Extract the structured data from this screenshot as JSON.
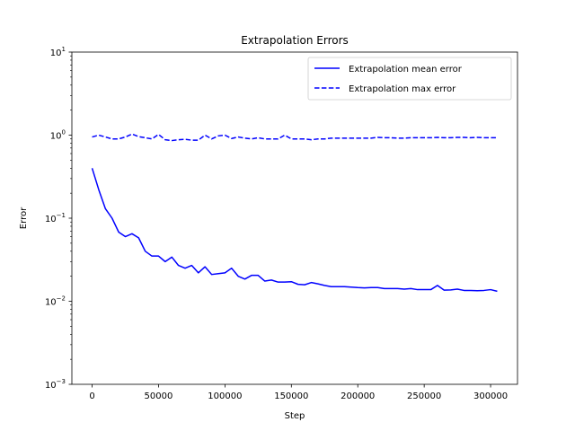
{
  "chart_data": {
    "type": "line",
    "title": "Extrapolation Errors",
    "xlabel": "Step",
    "ylabel": "Error",
    "yscale": "log",
    "xlim": [
      -15250,
      320250
    ],
    "ylim": [
      0.001,
      10
    ],
    "xticks": [
      0,
      50000,
      100000,
      150000,
      200000,
      250000,
      300000
    ],
    "xtick_labels": [
      "0",
      "50000",
      "100000",
      "150000",
      "200000",
      "250000",
      "300000"
    ],
    "yticks": [
      0.001,
      0.01,
      0.1,
      1,
      10
    ],
    "ytick_labels": [
      {
        "base": "10",
        "exp": "−3"
      },
      {
        "base": "10",
        "exp": "−2"
      },
      {
        "base": "10",
        "exp": "−1"
      },
      {
        "base": "10",
        "exp": "0"
      },
      {
        "base": "10",
        "exp": "1"
      }
    ],
    "grid": false,
    "legend_position": "upper right",
    "x": [
      0,
      5000,
      10000,
      15000,
      20000,
      25000,
      30000,
      35000,
      40000,
      45000,
      50000,
      55000,
      60000,
      65000,
      70000,
      75000,
      80000,
      85000,
      90000,
      95000,
      100000,
      105000,
      110000,
      115000,
      120000,
      125000,
      130000,
      135000,
      140000,
      145000,
      150000,
      155000,
      160000,
      165000,
      170000,
      175000,
      180000,
      185000,
      190000,
      195000,
      200000,
      205000,
      210000,
      215000,
      220000,
      225000,
      230000,
      235000,
      240000,
      245000,
      250000,
      255000,
      260000,
      265000,
      270000,
      275000,
      280000,
      285000,
      290000,
      295000,
      300000,
      305000
    ],
    "series": [
      {
        "name": "Extrapolation mean error",
        "color": "#0000ff",
        "style": "solid",
        "values": [
          0.4,
          0.22,
          0.13,
          0.1,
          0.068,
          0.06,
          0.065,
          0.058,
          0.04,
          0.035,
          0.035,
          0.03,
          0.034,
          0.027,
          0.025,
          0.027,
          0.022,
          0.026,
          0.021,
          0.0215,
          0.022,
          0.025,
          0.02,
          0.0185,
          0.0205,
          0.0205,
          0.0175,
          0.018,
          0.017,
          0.017,
          0.0172,
          0.016,
          0.0158,
          0.0168,
          0.0162,
          0.0155,
          0.015,
          0.015,
          0.015,
          0.0148,
          0.0146,
          0.0145,
          0.0146,
          0.0146,
          0.0142,
          0.0142,
          0.0142,
          0.014,
          0.0142,
          0.0138,
          0.0138,
          0.0138,
          0.0155,
          0.0136,
          0.0137,
          0.014,
          0.0135,
          0.0135,
          0.0134,
          0.0135,
          0.0138,
          0.0132
        ]
      },
      {
        "name": "Extrapolation max error",
        "color": "#0000ff",
        "style": "dashed",
        "values": [
          0.95,
          1.0,
          0.95,
          0.9,
          0.9,
          0.95,
          1.03,
          0.96,
          0.93,
          0.9,
          1.02,
          0.88,
          0.86,
          0.88,
          0.89,
          0.87,
          0.87,
          1.0,
          0.9,
          0.98,
          1.0,
          0.91,
          0.95,
          0.92,
          0.9,
          0.93,
          0.9,
          0.9,
          0.9,
          1.0,
          0.9,
          0.9,
          0.9,
          0.88,
          0.9,
          0.9,
          0.92,
          0.92,
          0.92,
          0.92,
          0.92,
          0.92,
          0.92,
          0.94,
          0.93,
          0.93,
          0.92,
          0.92,
          0.93,
          0.93,
          0.93,
          0.93,
          0.94,
          0.93,
          0.93,
          0.94,
          0.94,
          0.93,
          0.94,
          0.93,
          0.93,
          0.93
        ]
      }
    ]
  }
}
